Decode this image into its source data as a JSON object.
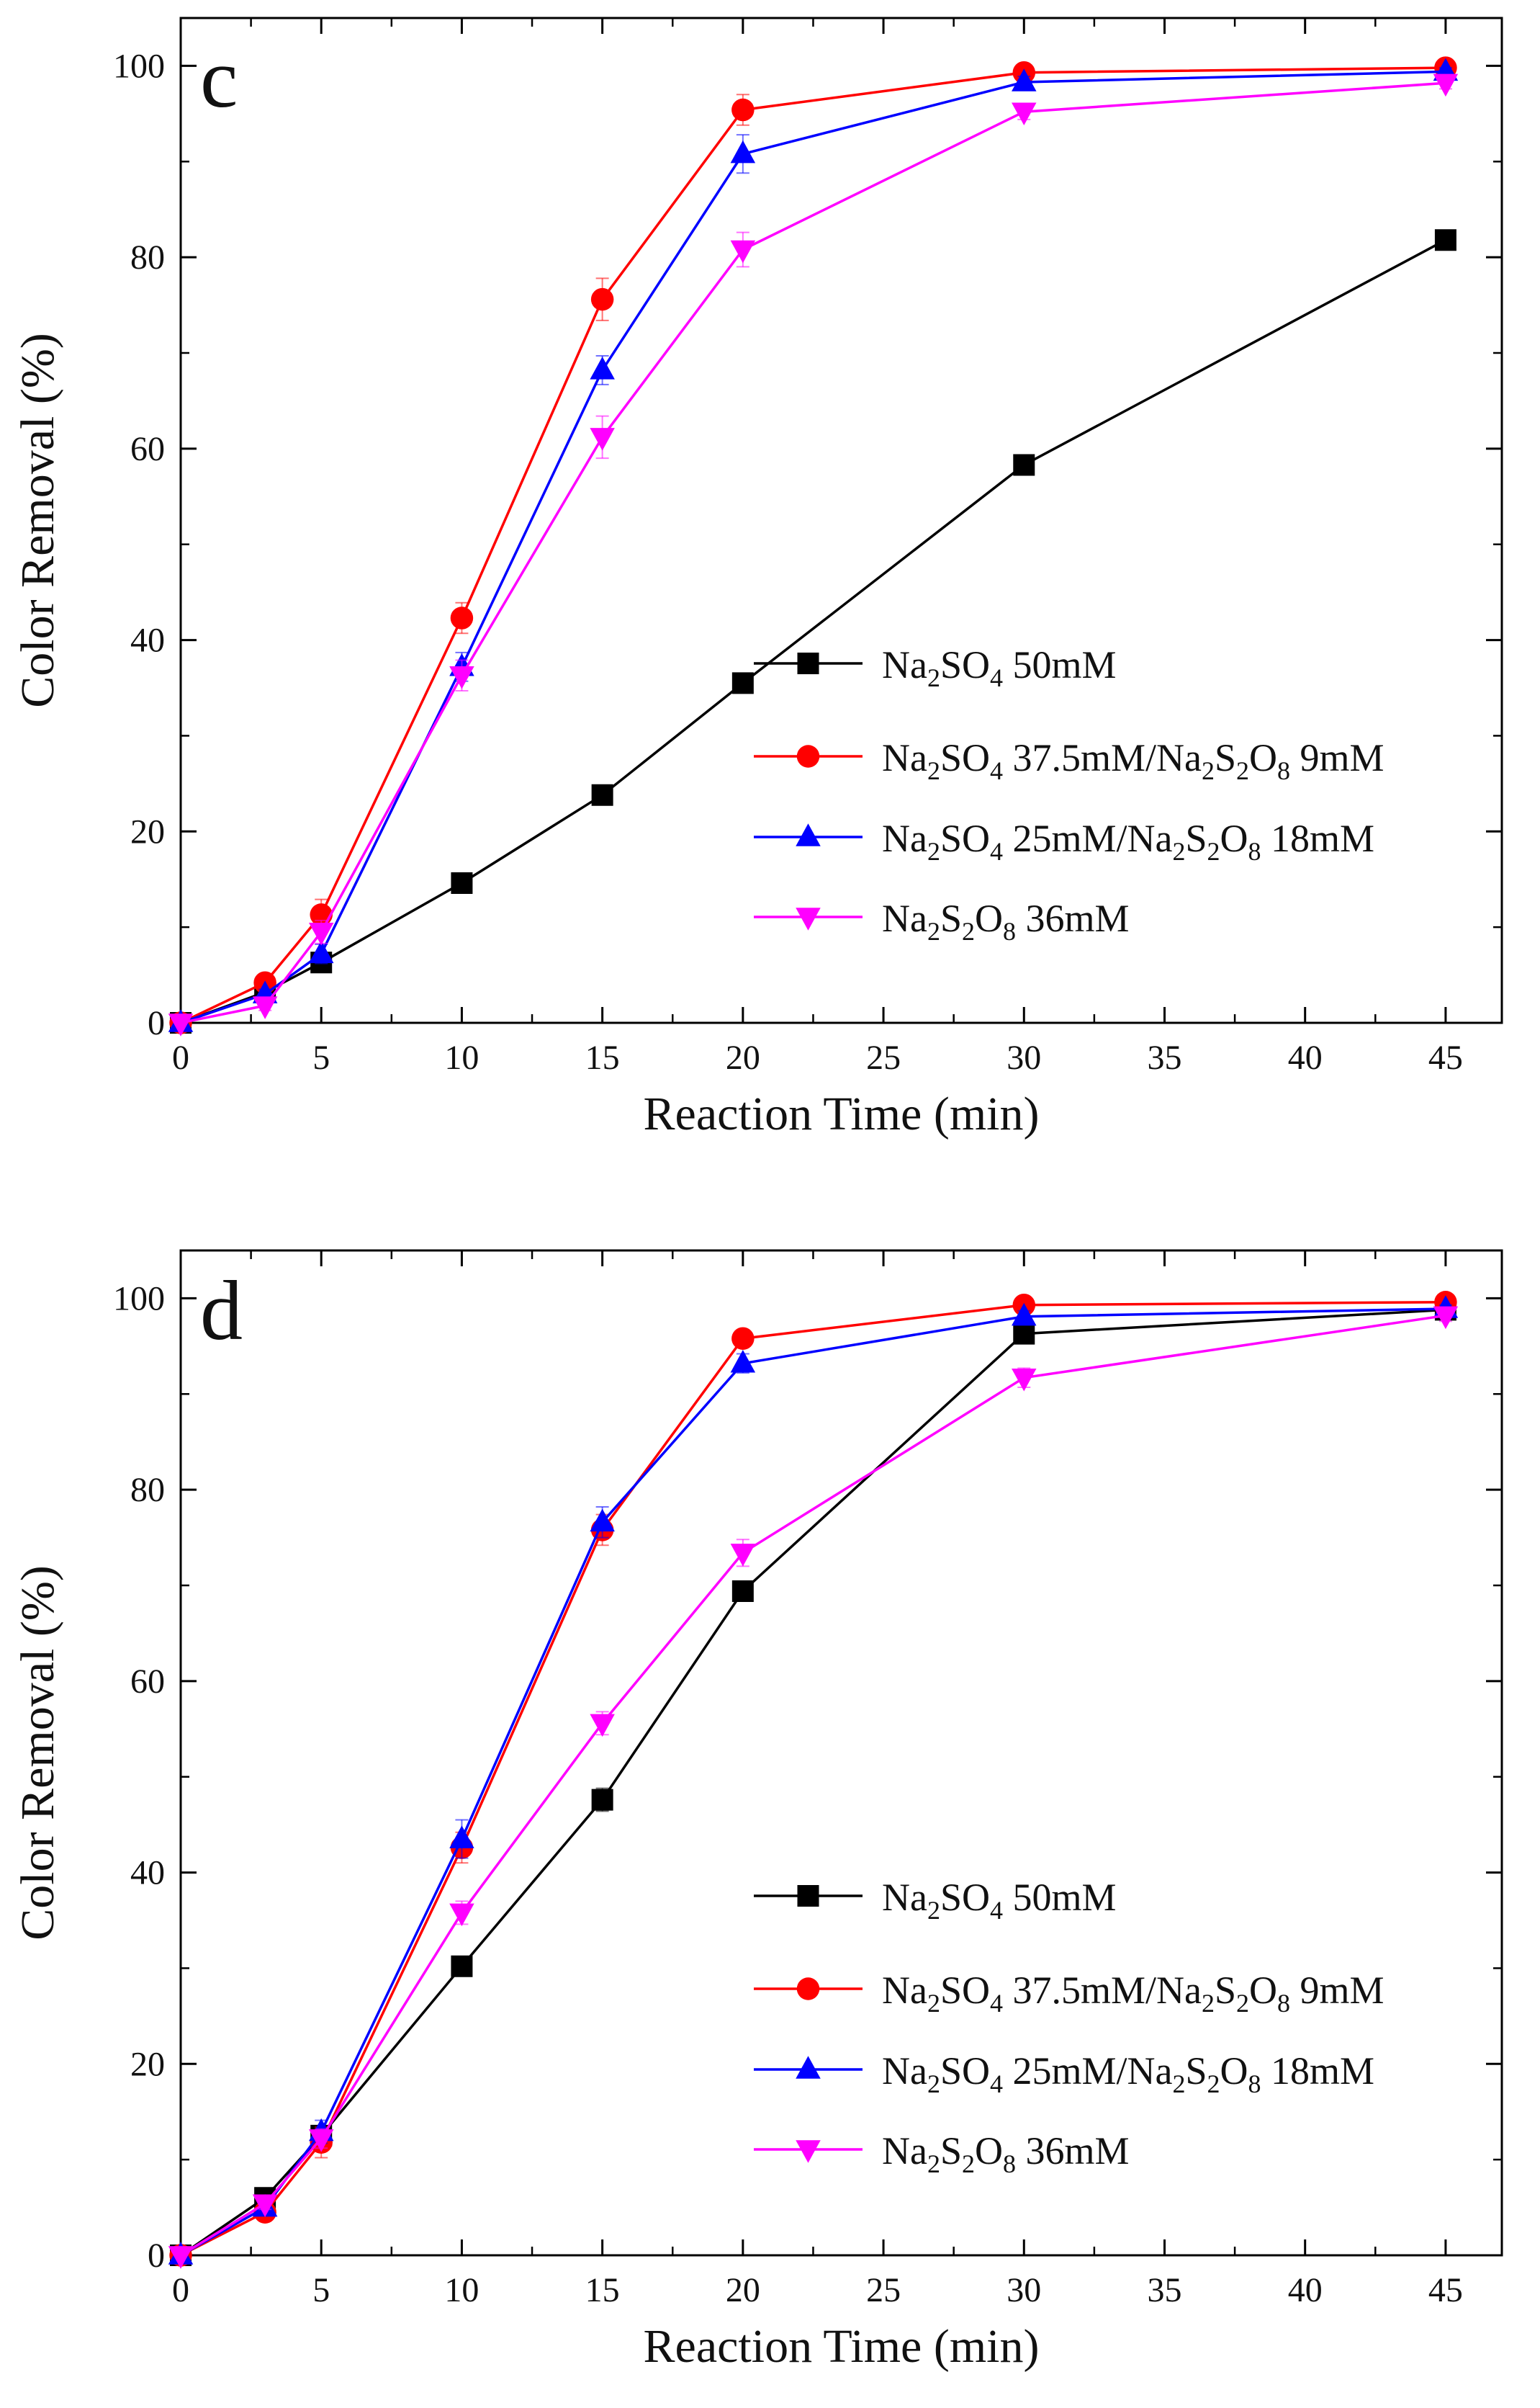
{
  "chart_data": [
    {
      "type": "line",
      "panel_label": "c",
      "xlabel": "Reaction Time (min)",
      "ylabel": "Color Removal (%)",
      "xlim": [
        0,
        47
      ],
      "ylim": [
        0,
        105
      ],
      "xticks": [
        0,
        5,
        10,
        15,
        20,
        25,
        30,
        35,
        40,
        45
      ],
      "yticks": [
        0,
        20,
        40,
        60,
        80,
        100
      ],
      "legend_position": "lower-right",
      "series": [
        {
          "name": "Na2SO4 50mM",
          "color": "#000000",
          "marker": "square",
          "x": [
            0,
            3,
            5,
            10,
            15,
            20,
            30,
            45
          ],
          "y": [
            0,
            3.2,
            6.3,
            14.6,
            23.8,
            35.5,
            58.3,
            81.8
          ],
          "err": [
            0,
            0.5,
            0.8,
            1.0,
            1.0,
            0.8,
            1.0,
            1.0
          ]
        },
        {
          "name": "Na2SO4 37.5mM/Na2S2O8 9mM",
          "color": "#ff0000",
          "marker": "circle",
          "x": [
            0,
            3,
            5,
            10,
            15,
            20,
            30,
            45
          ],
          "y": [
            0,
            4.2,
            11.3,
            42.3,
            75.6,
            95.4,
            99.3,
            99.8
          ],
          "err": [
            0,
            0.6,
            1.6,
            1.6,
            2.2,
            1.6,
            0.4,
            0.3
          ]
        },
        {
          "name": "Na2SO4 25mM/Na2S2O8 18mM",
          "color": "#0000ff",
          "marker": "triangle-up",
          "x": [
            0,
            3,
            5,
            10,
            15,
            20,
            30,
            45
          ],
          "y": [
            0,
            3.0,
            7.2,
            37.2,
            68.2,
            90.8,
            98.3,
            99.4
          ],
          "err": [
            0,
            0.5,
            1.0,
            1.5,
            1.5,
            2.0,
            0.6,
            0.4
          ]
        },
        {
          "name": "Na2S2O8 36mM",
          "color": "#ff00ff",
          "marker": "triangle-down",
          "x": [
            0,
            3,
            5,
            10,
            15,
            20,
            30,
            45
          ],
          "y": [
            0,
            1.8,
            9.5,
            36.3,
            61.2,
            80.8,
            95.2,
            98.2
          ],
          "err": [
            0,
            0.5,
            1.2,
            1.6,
            2.2,
            1.8,
            0.8,
            0.6
          ]
        }
      ]
    },
    {
      "type": "line",
      "panel_label": "d",
      "xlabel": "Reaction Time (min)",
      "ylabel": "Color Removal (%)",
      "xlim": [
        0,
        47
      ],
      "ylim": [
        0,
        105
      ],
      "xticks": [
        0,
        5,
        10,
        15,
        20,
        25,
        30,
        35,
        40,
        45
      ],
      "yticks": [
        0,
        20,
        40,
        60,
        80,
        100
      ],
      "legend_position": "lower-right",
      "series": [
        {
          "name": "Na2SO4 50mM",
          "color": "#000000",
          "marker": "square",
          "x": [
            0,
            3,
            5,
            10,
            15,
            20,
            30,
            45
          ],
          "y": [
            0,
            6.0,
            12.5,
            30.2,
            47.6,
            69.4,
            96.3,
            98.8
          ],
          "err": [
            0,
            0.6,
            1.0,
            1.0,
            1.2,
            1.0,
            0.8,
            0.5
          ]
        },
        {
          "name": "Na2SO4 37.5mM/Na2S2O8 9mM",
          "color": "#ff0000",
          "marker": "circle",
          "x": [
            0,
            3,
            5,
            10,
            15,
            20,
            30,
            45
          ],
          "y": [
            0,
            4.5,
            11.8,
            42.6,
            75.8,
            95.8,
            99.3,
            99.6
          ],
          "err": [
            0,
            0.6,
            1.6,
            1.6,
            1.6,
            0.8,
            0.4,
            0.3
          ]
        },
        {
          "name": "Na2SO4 25mM/Na2S2O8 18mM",
          "color": "#0000ff",
          "marker": "triangle-up",
          "x": [
            0,
            3,
            5,
            10,
            15,
            20,
            30,
            45
          ],
          "y": [
            0,
            5.0,
            12.9,
            43.5,
            76.6,
            93.2,
            98.1,
            98.9
          ],
          "err": [
            0,
            0.6,
            1.2,
            2.0,
            1.6,
            1.0,
            0.6,
            0.4
          ]
        },
        {
          "name": "Na2S2O8 36mM",
          "color": "#ff00ff",
          "marker": "triangle-down",
          "x": [
            0,
            3,
            5,
            10,
            15,
            20,
            30,
            45
          ],
          "y": [
            0,
            5.4,
            12.2,
            35.8,
            55.6,
            73.4,
            91.7,
            98.2
          ],
          "err": [
            0,
            0.6,
            1.0,
            1.2,
            1.2,
            1.4,
            1.0,
            0.6
          ]
        }
      ]
    }
  ],
  "legend_entries": [
    {
      "parts": [
        [
          "Na",
          "n"
        ],
        [
          "2",
          "s"
        ],
        [
          "SO",
          "n"
        ],
        [
          "4",
          "s"
        ],
        [
          " 50mM",
          "n"
        ]
      ]
    },
    {
      "parts": [
        [
          "Na",
          "n"
        ],
        [
          "2",
          "s"
        ],
        [
          "SO",
          "n"
        ],
        [
          "4",
          "s"
        ],
        [
          " 37.5mM/Na",
          "n"
        ],
        [
          "2",
          "s"
        ],
        [
          "S",
          "n"
        ],
        [
          "2",
          "s"
        ],
        [
          "O",
          "n"
        ],
        [
          "8",
          "s"
        ],
        [
          " 9mM",
          "n"
        ]
      ]
    },
    {
      "parts": [
        [
          "Na",
          "n"
        ],
        [
          "2",
          "s"
        ],
        [
          "SO",
          "n"
        ],
        [
          "4",
          "s"
        ],
        [
          " 25mM/Na",
          "n"
        ],
        [
          "2",
          "s"
        ],
        [
          "S",
          "n"
        ],
        [
          "2",
          "s"
        ],
        [
          "O",
          "n"
        ],
        [
          "8",
          "s"
        ],
        [
          " 18mM",
          "n"
        ]
      ]
    },
    {
      "parts": [
        [
          "Na",
          "n"
        ],
        [
          "2",
          "s"
        ],
        [
          "S",
          "n"
        ],
        [
          "2",
          "s"
        ],
        [
          "O",
          "n"
        ],
        [
          "8",
          "s"
        ],
        [
          " 36mM",
          "n"
        ]
      ]
    }
  ]
}
